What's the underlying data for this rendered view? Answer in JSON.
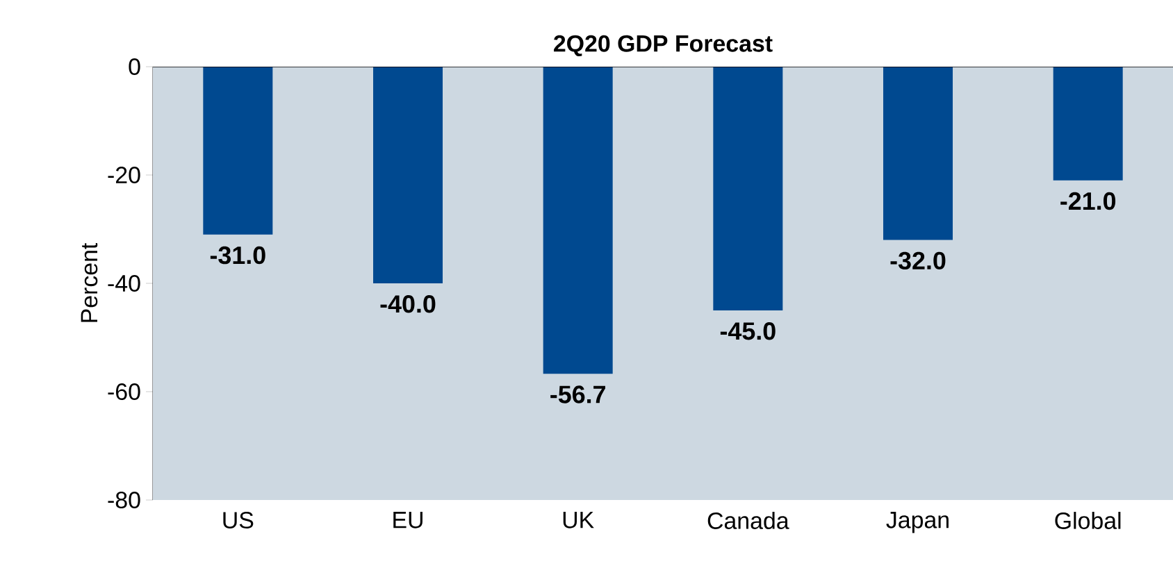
{
  "chart_data": {
    "type": "bar",
    "title": "2Q20 GDP Forecast",
    "ylabel": "Percent",
    "categories": [
      "US",
      "EU",
      "UK",
      "Canada",
      "Japan",
      "Global"
    ],
    "values": [
      -31.0,
      -40.0,
      -56.7,
      -45.0,
      -32.0,
      -21.0
    ],
    "value_labels": [
      "-31.0",
      "-40.0",
      "-56.7",
      "-45.0",
      "-32.0",
      "-21.0"
    ],
    "color": "#004990",
    "ylim": [
      -80,
      0
    ],
    "yticks": [
      0,
      -20,
      -40,
      -60,
      -80
    ],
    "grid": false
  }
}
